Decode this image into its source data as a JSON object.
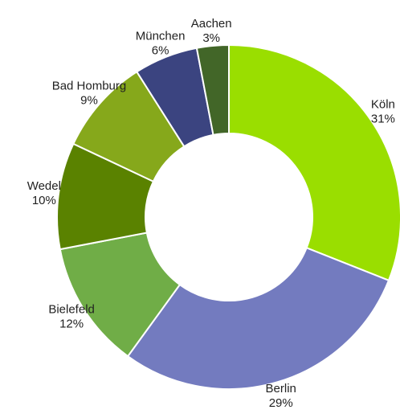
{
  "chart_data": {
    "type": "donut",
    "categories": [
      "Köln",
      "Berlin",
      "Bielefeld",
      "Wedel",
      "Bad Homburg",
      "München",
      "Aachen"
    ],
    "values": [
      31,
      29,
      12,
      10,
      9,
      6,
      3
    ],
    "value_labels": [
      "31%",
      "29%",
      "12%",
      "10%",
      "9%",
      "6%",
      "3%"
    ],
    "colors": [
      "#9ade00",
      "#737bbf",
      "#70ad47",
      "#5a8200",
      "#86a81b",
      "#3b4480",
      "#426628"
    ]
  }
}
